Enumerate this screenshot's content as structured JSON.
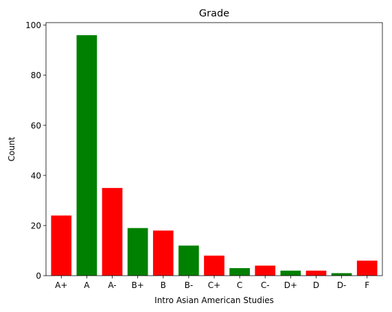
{
  "chart_data": {
    "type": "bar",
    "title": "Grade",
    "xlabel": "Intro Asian American Studies",
    "ylabel": "Count",
    "categories": [
      "A+",
      "A",
      "A-",
      "B+",
      "B",
      "B-",
      "C+",
      "C",
      "C-",
      "D+",
      "D",
      "D-",
      "F"
    ],
    "values": [
      24,
      96,
      35,
      19,
      18,
      12,
      8,
      3,
      4,
      2,
      2,
      1,
      6
    ],
    "bar_colors": [
      "#ff0000",
      "#008000",
      "#ff0000",
      "#008000",
      "#ff0000",
      "#008000",
      "#ff0000",
      "#008000",
      "#ff0000",
      "#008000",
      "#ff0000",
      "#008000",
      "#ff0000"
    ],
    "ylim": [
      0,
      101
    ],
    "yticks": [
      0,
      20,
      40,
      60,
      80,
      100
    ],
    "grid": false,
    "legend": "none"
  }
}
